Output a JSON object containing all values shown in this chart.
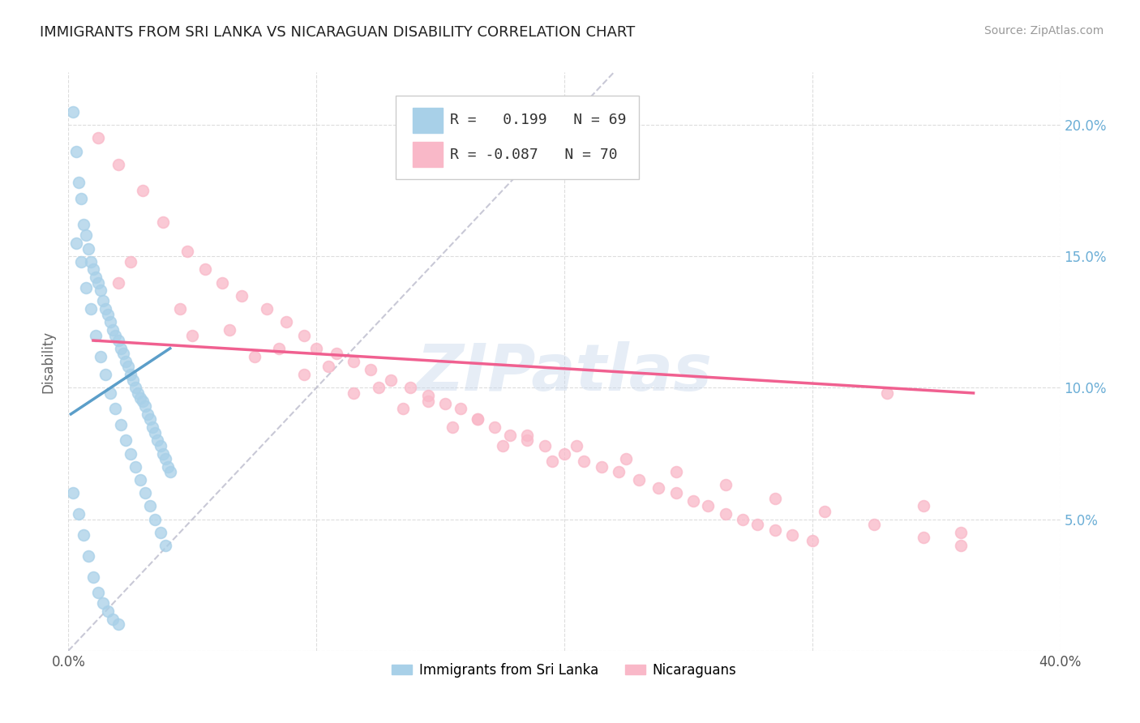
{
  "title": "IMMIGRANTS FROM SRI LANKA VS NICARAGUAN DISABILITY CORRELATION CHART",
  "source": "Source: ZipAtlas.com",
  "ylabel": "Disability",
  "legend_r1": "R =   0.199   N = 69",
  "legend_r2": "R = -0.087   N = 70",
  "legend_label1": "Immigrants from Sri Lanka",
  "legend_label2": "Nicaraguans",
  "sri_lanka_color": "#A8D0E8",
  "nicaragua_color": "#F9B8C8",
  "sri_lanka_line_color": "#5B9EC9",
  "nicaragua_line_color": "#F06090",
  "diagonal_line_color": "#BBBBCC",
  "watermark": "ZIPatlas",
  "xlim": [
    0.0,
    0.4
  ],
  "ylim": [
    0.0,
    0.22
  ],
  "sri_lanka_x": [
    0.002,
    0.003,
    0.004,
    0.005,
    0.006,
    0.007,
    0.008,
    0.009,
    0.01,
    0.011,
    0.012,
    0.013,
    0.014,
    0.015,
    0.016,
    0.017,
    0.018,
    0.019,
    0.02,
    0.021,
    0.022,
    0.023,
    0.024,
    0.025,
    0.026,
    0.027,
    0.028,
    0.029,
    0.03,
    0.031,
    0.032,
    0.033,
    0.034,
    0.035,
    0.036,
    0.037,
    0.038,
    0.039,
    0.04,
    0.041,
    0.003,
    0.005,
    0.007,
    0.009,
    0.011,
    0.013,
    0.015,
    0.017,
    0.019,
    0.021,
    0.023,
    0.025,
    0.027,
    0.029,
    0.031,
    0.033,
    0.035,
    0.037,
    0.039,
    0.002,
    0.004,
    0.006,
    0.008,
    0.01,
    0.012,
    0.014,
    0.016,
    0.018,
    0.02
  ],
  "sri_lanka_y": [
    0.205,
    0.19,
    0.178,
    0.172,
    0.162,
    0.158,
    0.153,
    0.148,
    0.145,
    0.142,
    0.14,
    0.137,
    0.133,
    0.13,
    0.128,
    0.125,
    0.122,
    0.12,
    0.118,
    0.115,
    0.113,
    0.11,
    0.108,
    0.105,
    0.103,
    0.1,
    0.098,
    0.096,
    0.095,
    0.093,
    0.09,
    0.088,
    0.085,
    0.083,
    0.08,
    0.078,
    0.075,
    0.073,
    0.07,
    0.068,
    0.155,
    0.148,
    0.138,
    0.13,
    0.12,
    0.112,
    0.105,
    0.098,
    0.092,
    0.086,
    0.08,
    0.075,
    0.07,
    0.065,
    0.06,
    0.055,
    0.05,
    0.045,
    0.04,
    0.06,
    0.052,
    0.044,
    0.036,
    0.028,
    0.022,
    0.018,
    0.015,
    0.012,
    0.01
  ],
  "nicaragua_x": [
    0.012,
    0.02,
    0.03,
    0.038,
    0.048,
    0.055,
    0.062,
    0.07,
    0.08,
    0.088,
    0.095,
    0.1,
    0.108,
    0.115,
    0.122,
    0.13,
    0.138,
    0.145,
    0.152,
    0.158,
    0.165,
    0.172,
    0.178,
    0.185,
    0.192,
    0.2,
    0.208,
    0.215,
    0.222,
    0.23,
    0.238,
    0.245,
    0.252,
    0.258,
    0.265,
    0.272,
    0.278,
    0.285,
    0.292,
    0.3,
    0.025,
    0.045,
    0.065,
    0.085,
    0.105,
    0.125,
    0.145,
    0.165,
    0.185,
    0.205,
    0.225,
    0.245,
    0.265,
    0.285,
    0.305,
    0.325,
    0.345,
    0.36,
    0.02,
    0.05,
    0.075,
    0.095,
    0.115,
    0.135,
    0.155,
    0.175,
    0.195,
    0.33,
    0.345,
    0.36
  ],
  "nicaragua_y": [
    0.195,
    0.185,
    0.175,
    0.163,
    0.152,
    0.145,
    0.14,
    0.135,
    0.13,
    0.125,
    0.12,
    0.115,
    0.113,
    0.11,
    0.107,
    0.103,
    0.1,
    0.097,
    0.094,
    0.092,
    0.088,
    0.085,
    0.082,
    0.08,
    0.078,
    0.075,
    0.072,
    0.07,
    0.068,
    0.065,
    0.062,
    0.06,
    0.057,
    0.055,
    0.052,
    0.05,
    0.048,
    0.046,
    0.044,
    0.042,
    0.148,
    0.13,
    0.122,
    0.115,
    0.108,
    0.1,
    0.095,
    0.088,
    0.082,
    0.078,
    0.073,
    0.068,
    0.063,
    0.058,
    0.053,
    0.048,
    0.043,
    0.04,
    0.14,
    0.12,
    0.112,
    0.105,
    0.098,
    0.092,
    0.085,
    0.078,
    0.072,
    0.098,
    0.055,
    0.045
  ],
  "sri_lanka_line_x": [
    0.001,
    0.041
  ],
  "sri_lanka_line_y": [
    0.09,
    0.115
  ],
  "nicaragua_line_x": [
    0.01,
    0.365
  ],
  "nicaragua_line_y": [
    0.118,
    0.098
  ]
}
